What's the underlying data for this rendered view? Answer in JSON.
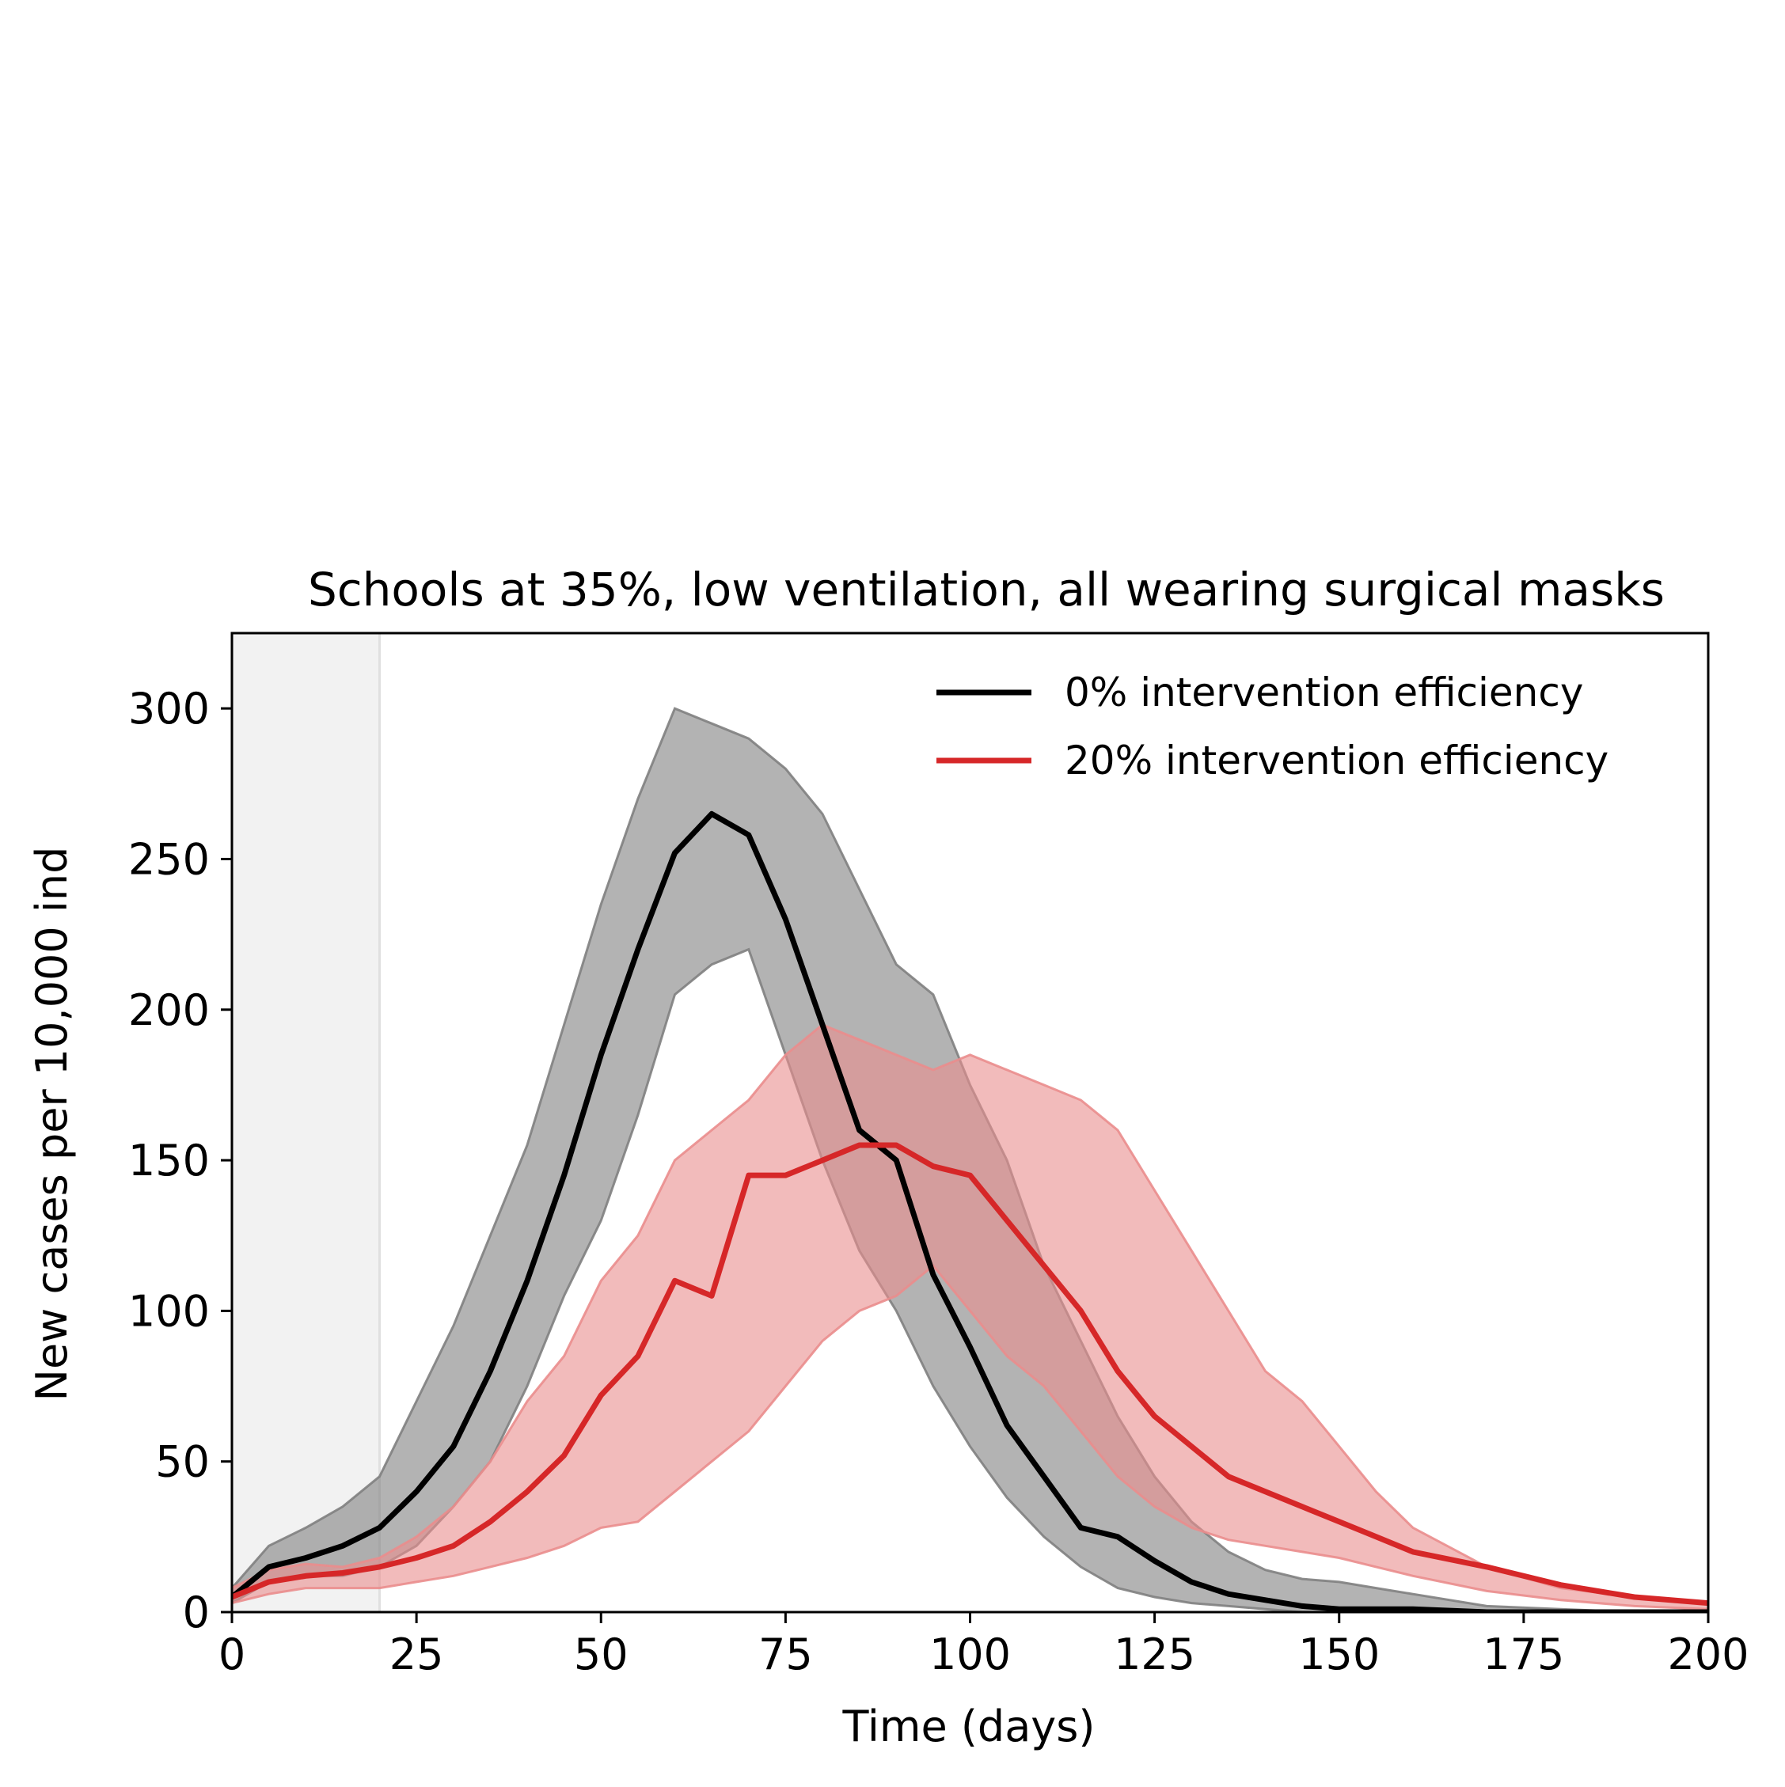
{
  "chart_data": {
    "type": "line",
    "title": "Schools at 35%, low ventilation, all wearing surgical masks",
    "xlabel": "Time (days)",
    "ylabel": "New cases per 10,000 ind",
    "xlim": [
      0,
      200
    ],
    "ylim": [
      0,
      325
    ],
    "x_ticks": [
      "0",
      "25",
      "50",
      "75",
      "100",
      "125",
      "150",
      "175",
      "200"
    ],
    "y_ticks": [
      "0",
      "50",
      "100",
      "150",
      "200",
      "250",
      "300"
    ],
    "grid": false,
    "legend_position": "top-right",
    "shaded_region": {
      "x_start": 0,
      "x_end": 20,
      "color": "#f2f2f2"
    },
    "series": [
      {
        "name": "0% intervention efficiency",
        "color": "#000000",
        "band_color": "#808080",
        "x": [
          0,
          5,
          10,
          15,
          20,
          25,
          30,
          35,
          40,
          45,
          50,
          55,
          60,
          65,
          70,
          75,
          80,
          85,
          90,
          95,
          100,
          105,
          110,
          115,
          120,
          125,
          130,
          135,
          140,
          145,
          150,
          155,
          160,
          170,
          180,
          190,
          200
        ],
        "mean": [
          5,
          15,
          18,
          22,
          28,
          40,
          55,
          80,
          110,
          145,
          185,
          220,
          252,
          265,
          258,
          230,
          195,
          160,
          150,
          112,
          88,
          62,
          45,
          28,
          25,
          17,
          10,
          6,
          4,
          2,
          1,
          1,
          1,
          0,
          0,
          0,
          0
        ],
        "upper": [
          8,
          22,
          28,
          35,
          45,
          70,
          95,
          125,
          155,
          195,
          235,
          270,
          300,
          295,
          290,
          280,
          265,
          240,
          215,
          205,
          175,
          150,
          115,
          90,
          65,
          45,
          30,
          20,
          14,
          11,
          10,
          8,
          6,
          2,
          1,
          0,
          0
        ],
        "lower": [
          3,
          10,
          12,
          12,
          15,
          22,
          35,
          50,
          75,
          105,
          130,
          165,
          205,
          215,
          220,
          185,
          150,
          120,
          100,
          75,
          55,
          38,
          25,
          15,
          8,
          5,
          3,
          2,
          1,
          0,
          0,
          0,
          0,
          0,
          0,
          0,
          0
        ]
      },
      {
        "name": "20% intervention efficiency",
        "color": "#d62728",
        "band_color": "#ea8d8d",
        "x": [
          0,
          5,
          10,
          15,
          20,
          25,
          30,
          35,
          40,
          45,
          50,
          55,
          60,
          65,
          70,
          75,
          80,
          85,
          90,
          95,
          100,
          105,
          110,
          115,
          120,
          125,
          130,
          135,
          140,
          145,
          150,
          155,
          160,
          170,
          180,
          190,
          200
        ],
        "mean": [
          5,
          10,
          12,
          13,
          15,
          18,
          22,
          30,
          40,
          52,
          72,
          85,
          110,
          105,
          145,
          145,
          150,
          155,
          155,
          148,
          145,
          130,
          115,
          100,
          80,
          65,
          55,
          45,
          40,
          35,
          30,
          25,
          20,
          15,
          9,
          5,
          3
        ],
        "upper": [
          8,
          14,
          16,
          15,
          18,
          25,
          35,
          50,
          70,
          85,
          110,
          125,
          150,
          160,
          170,
          185,
          195,
          190,
          185,
          180,
          185,
          180,
          175,
          170,
          160,
          140,
          120,
          100,
          80,
          70,
          55,
          40,
          28,
          15,
          8,
          5,
          3
        ],
        "lower": [
          3,
          6,
          8,
          8,
          8,
          10,
          12,
          15,
          18,
          22,
          28,
          30,
          40,
          50,
          60,
          75,
          90,
          100,
          105,
          115,
          100,
          85,
          75,
          60,
          45,
          35,
          28,
          24,
          22,
          20,
          18,
          15,
          12,
          7,
          4,
          2,
          1
        ]
      }
    ]
  }
}
